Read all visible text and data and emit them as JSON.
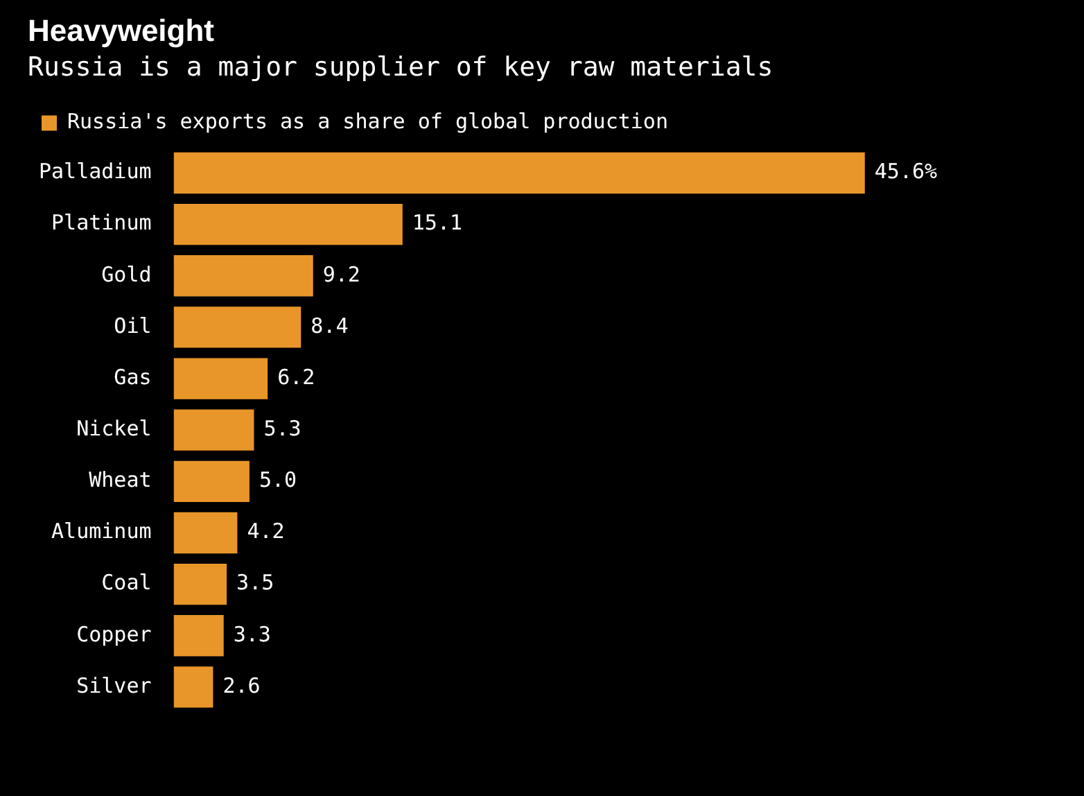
{
  "chart_data": {
    "type": "bar",
    "orientation": "horizontal",
    "title": "Heavyweight",
    "subtitle": "Russia is a major supplier of key raw materials",
    "categories": [
      "Palladium",
      "Platinum",
      "Gold",
      "Oil",
      "Gas",
      "Nickel",
      "Wheat",
      "Aluminum",
      "Coal",
      "Copper",
      "Silver"
    ],
    "series": [
      {
        "name": "Russia's exports as a share of global production",
        "color": "#e8962a",
        "values": [
          45.6,
          15.1,
          9.2,
          8.4,
          6.2,
          5.3,
          5.0,
          4.2,
          3.5,
          3.3,
          2.6
        ],
        "value_labels": [
          "45.6%",
          "15.1",
          "9.2",
          "8.4",
          "6.2",
          "5.3",
          "5.0",
          "4.2",
          "3.5",
          "3.3",
          "2.6"
        ]
      }
    ],
    "legend": "top left"
  }
}
